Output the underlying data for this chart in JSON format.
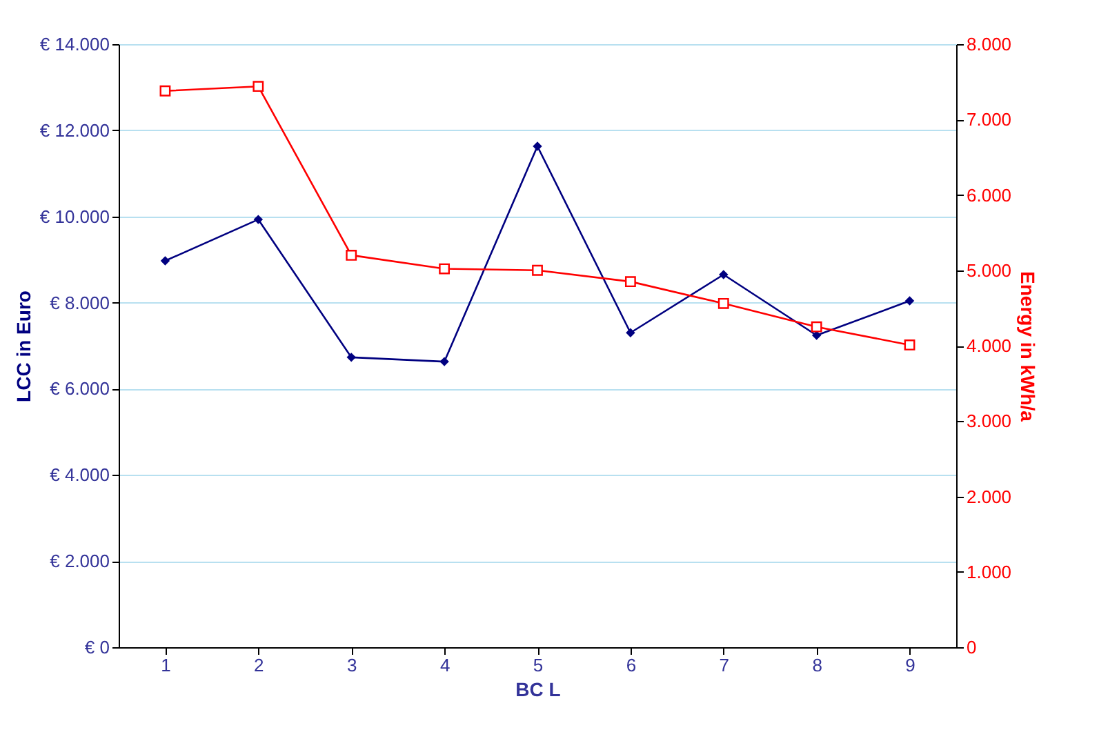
{
  "chart_data": {
    "type": "line",
    "xlabel": "BC L",
    "ylabel": "LCC in Euro",
    "y2label": "Energy in kWh/a",
    "categories": [
      "1",
      "2",
      "3",
      "4",
      "5",
      "6",
      "7",
      "8",
      "9"
    ],
    "series": [
      {
        "color": "#000080",
        "marker": "diamond",
        "values": [
          8970,
          9930,
          6730,
          6630,
          11630,
          7300,
          8650,
          7240,
          8040
        ]
      },
      {
        "color": "#ff0000",
        "marker": "square",
        "axis": "y2",
        "values": [
          7380,
          7440,
          5200,
          5020,
          5000,
          4850,
          4560,
          4250,
          4010
        ]
      }
    ],
    "ylim": [
      0,
      14000
    ],
    "yticks": [
      {
        "value": 0,
        "label": "€ 0"
      },
      {
        "value": 2000,
        "label": "€ 2.000"
      },
      {
        "value": 4000,
        "label": "€ 4.000"
      },
      {
        "value": 6000,
        "label": "€ 6.000"
      },
      {
        "value": 8000,
        "label": "€ 8.000"
      },
      {
        "value": 10000,
        "label": "€ 10.000"
      },
      {
        "value": 12000,
        "label": "€ 12.000"
      },
      {
        "value": 14000,
        "label": "€ 14.000"
      }
    ],
    "y2lim": [
      0,
      8000
    ],
    "y2ticks": [
      0,
      {
        "value": 1000,
        "label": "1.000"
      },
      {
        "value": 2000,
        "label": "2.000"
      },
      {
        "value": 3000,
        "label": "3.000"
      },
      {
        "value": 4000,
        "label": "4.000"
      },
      {
        "value": 5000,
        "label": "5.000"
      },
      {
        "value": 6000,
        "label": "6.000"
      },
      {
        "value": 7000,
        "label": "7.000"
      },
      {
        "value": 8000,
        "label": "8.000"
      }
    ],
    "grid": "y",
    "line_style": "solid"
  }
}
